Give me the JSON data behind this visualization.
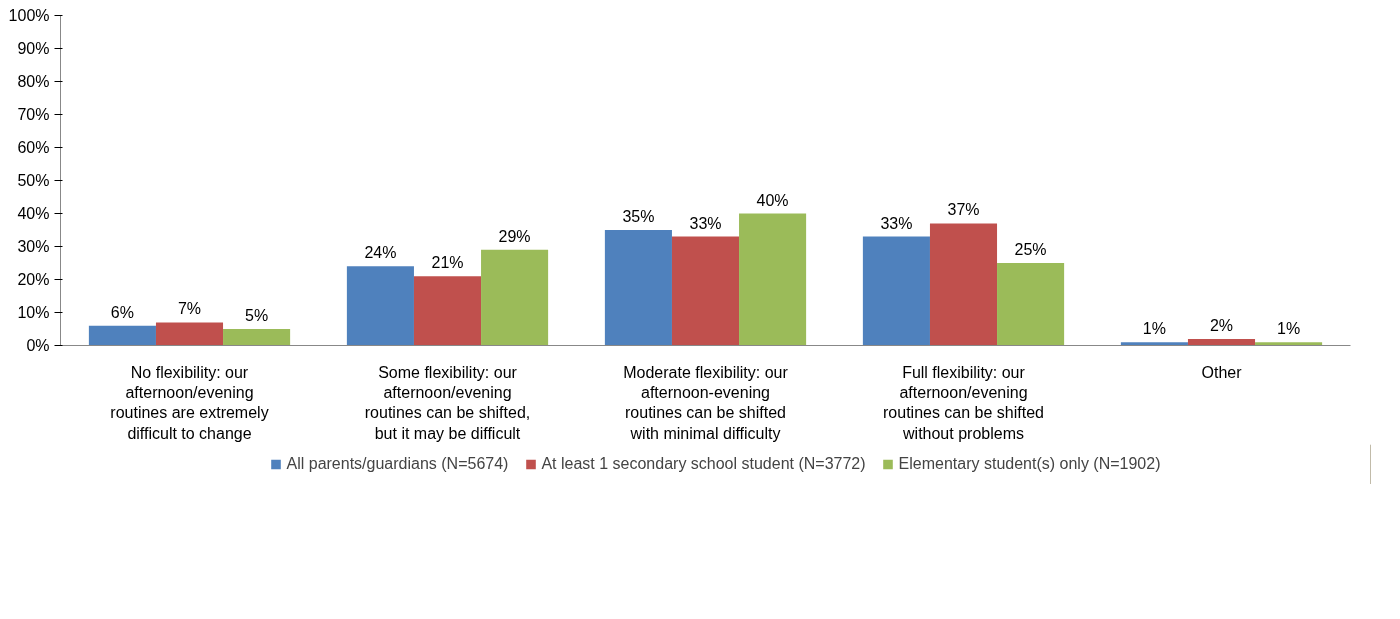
{
  "chart_data": {
    "type": "bar",
    "categories": [
      "No flexibility: our afternoon/evening routines are extremely difficult to change",
      "Some flexibility: our afternoon/evening routines can be shifted, but it may be difficult",
      "Moderate flexibility: our afternoon-evening routines can be shifted with minimal difficulty",
      "Full flexibility: our afternoon/evening routines can be shifted without problems",
      "Other"
    ],
    "series": [
      {
        "name": "All parents/guardians (N=5674)",
        "color": "#4f81bd",
        "values": [
          6,
          24,
          35,
          33,
          1
        ],
        "value_labels": [
          "6%",
          "24%",
          "35%",
          "33%",
          "1%"
        ]
      },
      {
        "name": "At least 1 secondary school student (N=3772)",
        "color": "#c0504d",
        "values": [
          7,
          21,
          33,
          37,
          2
        ],
        "value_labels": [
          "7%",
          "21%",
          "33%",
          "37%",
          "2%"
        ]
      },
      {
        "name": "Elementary student(s) only (N=1902)",
        "color": "#9bbb59",
        "values": [
          5,
          29,
          40,
          25,
          1
        ],
        "value_labels": [
          "5%",
          "29%",
          "40%",
          "25%",
          "1%"
        ]
      }
    ],
    "ylim": [
      0,
      100
    ],
    "yticks": [
      {
        "value": 0,
        "label": "0%"
      },
      {
        "value": 10,
        "label": "10%"
      },
      {
        "value": 20,
        "label": "20%"
      },
      {
        "value": 30,
        "label": "30%"
      },
      {
        "value": 40,
        "label": "40%"
      },
      {
        "value": 50,
        "label": "50%"
      },
      {
        "value": 60,
        "label": "60%"
      },
      {
        "value": 70,
        "label": "70%"
      },
      {
        "value": 80,
        "label": "80%"
      },
      {
        "value": 90,
        "label": "90%"
      },
      {
        "value": 100,
        "label": "100%"
      }
    ],
    "legend": "bottom"
  }
}
